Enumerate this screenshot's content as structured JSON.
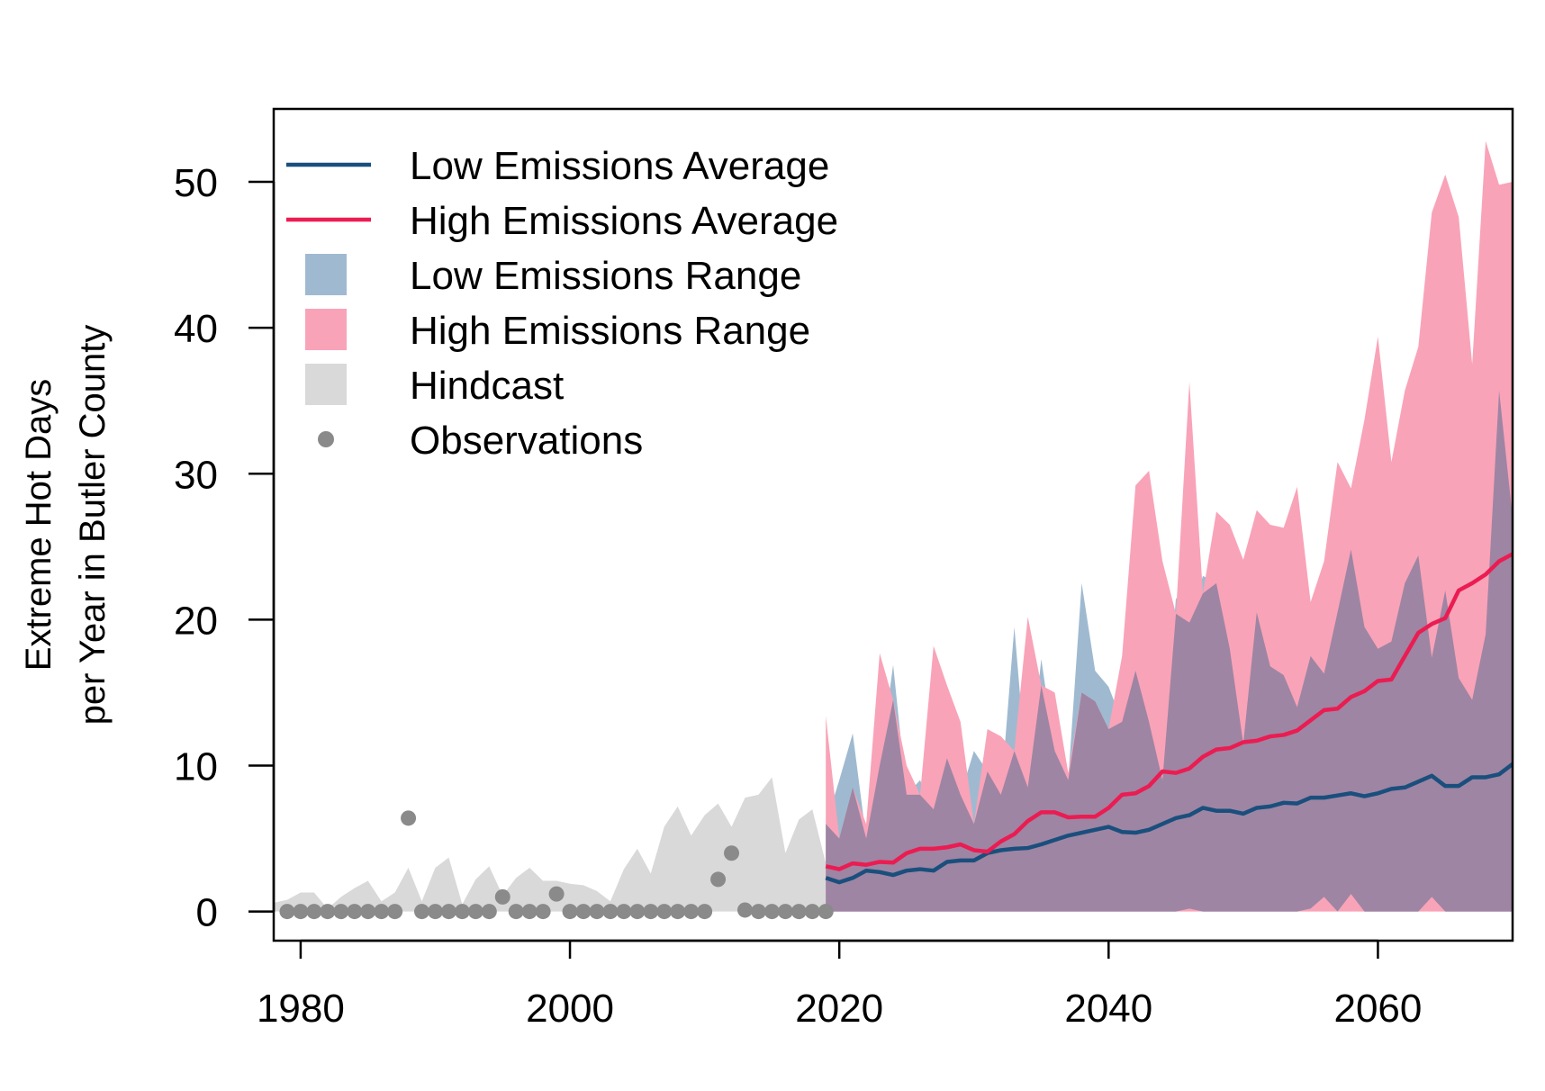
{
  "chart_data": {
    "type": "area",
    "ylabel_lines": [
      "Extreme Hot Days",
      "per Year in Butler County"
    ],
    "xlabel": "",
    "title": "",
    "xlim": [
      1978,
      2070
    ],
    "ylim": [
      -2,
      55
    ],
    "x_ticks": [
      1980,
      2000,
      2020,
      2040,
      2060
    ],
    "y_ticks": [
      0,
      10,
      20,
      30,
      40,
      50
    ],
    "x_tick_labels": [
      "1980",
      "2000",
      "2020",
      "2040",
      "2060"
    ],
    "y_tick_labels": [
      "0",
      "10",
      "20",
      "30",
      "40",
      "50"
    ],
    "grid": false,
    "legend_position": "top-left",
    "legend": [
      {
        "label": "Low Emissions Average",
        "kind": "line",
        "color": "#1a4f7d"
      },
      {
        "label": "High Emissions Average",
        "kind": "line",
        "color": "#eb1c52"
      },
      {
        "label": "Low Emissions Range",
        "kind": "box",
        "color": "#9fbad0"
      },
      {
        "label": "High Emissions Range",
        "kind": "box",
        "color": "#f9a3b8"
      },
      {
        "label": "Hindcast",
        "kind": "box",
        "color": "#d9d9d9"
      },
      {
        "label": "Observations",
        "kind": "point",
        "color": "#8a8a8a"
      }
    ],
    "colors": {
      "low_avg": "#1a4f7d",
      "high_avg": "#eb1c52",
      "low_range": "#9fbad0",
      "high_range": "#f9a3b8",
      "overlap": "#9e85a3",
      "hindcast": "#d9d9d9",
      "observations": "#8a8a8a"
    },
    "hindcast": {
      "x": [
        1978,
        1979,
        1980,
        1981,
        1982,
        1983,
        1984,
        1985,
        1986,
        1987,
        1988,
        1989,
        1990,
        1991,
        1992,
        1993,
        1994,
        1995,
        1996,
        1997,
        1998,
        1999,
        2000,
        2001,
        2002,
        2003,
        2004,
        2005,
        2006,
        2007,
        2008,
        2009,
        2010,
        2011,
        2012,
        2013,
        2014,
        2015,
        2016,
        2017,
        2018,
        2019
      ],
      "upper": [
        0.6,
        0.8,
        1.3,
        1.3,
        0.2,
        1.0,
        1.6,
        2.1,
        0.7,
        1.3,
        3.0,
        0.7,
        3.0,
        3.7,
        0.5,
        2.2,
        3.1,
        1.1,
        2.3,
        3.0,
        2.1,
        2.1,
        1.9,
        1.8,
        1.4,
        0.7,
        2.9,
        4.3,
        2.6,
        5.8,
        7.2,
        5.2,
        6.6,
        7.4,
        5.8,
        7.8,
        8.0,
        9.2,
        4.0,
        6.3,
        7.0,
        3.3
      ]
    },
    "observations": {
      "x": [
        1979,
        1980,
        1981,
        1982,
        1983,
        1984,
        1985,
        1986,
        1987,
        1988,
        1989,
        1990,
        1991,
        1992,
        1993,
        1994,
        1995,
        1996,
        1997,
        1998,
        1999,
        2000,
        2001,
        2002,
        2003,
        2004,
        2005,
        2006,
        2007,
        2008,
        2009,
        2010,
        2011,
        2012,
        2013,
        2014,
        2015,
        2016,
        2017,
        2018,
        2019
      ],
      "y": [
        0,
        0,
        0,
        0,
        0,
        0,
        0,
        0,
        0,
        6.4,
        0,
        0,
        0,
        0,
        0,
        0,
        1,
        0,
        0,
        0,
        1.2,
        0,
        0,
        0,
        0,
        0,
        0,
        0,
        0,
        0,
        0,
        0,
        2.2,
        4,
        0.1,
        0,
        0,
        0,
        0,
        0,
        0
      ]
    },
    "projection_years": [
      2019,
      2020,
      2021,
      2022,
      2023,
      2024,
      2025,
      2026,
      2027,
      2028,
      2029,
      2030,
      2031,
      2032,
      2033,
      2034,
      2035,
      2036,
      2037,
      2038,
      2039,
      2040,
      2041,
      2042,
      2043,
      2044,
      2045,
      2046,
      2047,
      2048,
      2049,
      2050,
      2051,
      2052,
      2053,
      2054,
      2055,
      2056,
      2057,
      2058,
      2059,
      2060,
      2061,
      2062,
      2063,
      2064,
      2065,
      2066,
      2067,
      2068,
      2069,
      2070
    ],
    "series": [
      {
        "name": "Low Emissions Range",
        "upper": [
          6,
          9,
          12.2,
          5,
          10,
          16.9,
          8,
          9,
          7,
          10.5,
          8,
          11,
          9.6,
          8,
          19.5,
          8.5,
          17.3,
          11,
          9,
          22.5,
          16.5,
          15.4,
          13,
          16.5,
          13,
          9,
          21.5,
          19.8,
          23,
          22.5,
          18,
          11.5,
          20.5,
          16.8,
          16.2,
          14,
          17.5,
          16.3,
          20.5,
          24.8,
          19.5,
          18,
          18.5,
          22.5,
          24.4,
          17.4,
          22,
          16,
          14.5,
          19,
          35.7,
          27
        ],
        "lower": [
          0,
          0,
          0,
          0,
          0,
          0,
          0,
          0,
          0,
          0,
          0,
          0,
          0,
          0,
          0,
          0,
          0,
          0,
          0,
          0,
          0,
          0,
          0,
          0,
          0,
          0,
          0,
          0.2,
          0,
          0,
          0,
          0,
          0,
          0,
          0,
          0,
          0.2,
          1.0,
          0,
          1.2,
          0,
          0,
          0,
          0,
          0,
          1.0,
          0,
          0,
          0,
          0,
          0,
          0
        ]
      },
      {
        "name": "High Emissions Range",
        "upper": [
          13.4,
          5,
          8.5,
          6,
          17.7,
          14.5,
          10,
          8,
          18.2,
          15.5,
          13,
          6,
          12.5,
          12,
          11,
          20.2,
          15.5,
          15,
          9.5,
          15,
          14.4,
          12.5,
          17.5,
          29.2,
          30.2,
          24,
          20.4,
          36.3,
          21.8,
          27.4,
          26.5,
          24.1,
          27.5,
          26.5,
          26.3,
          29.1,
          21.2,
          24,
          30.8,
          29,
          33.7,
          39.4,
          30.8,
          35.7,
          38.7,
          47.9,
          50.5,
          47.6,
          37.5,
          52.8,
          49.8,
          50
        ]
      },
      {
        "name": "Low Emissions Average",
        "values": [
          2.3,
          2,
          2.3,
          2.8,
          2.7,
          2.5,
          2.8,
          2.9,
          2.8,
          3.4,
          3.5,
          3.5,
          4,
          4.2,
          4.3,
          4.35,
          4.6,
          4.9,
          5.2,
          5.4,
          5.6,
          5.8,
          5.45,
          5.4,
          5.6,
          6,
          6.4,
          6.6,
          7.1,
          6.9,
          6.9,
          6.7,
          7.1,
          7.2,
          7.45,
          7.4,
          7.8,
          7.8,
          7.95,
          8.1,
          7.9,
          8.1,
          8.4,
          8.5,
          8.9,
          9.3,
          8.6,
          8.6,
          9.2,
          9.2,
          9.4,
          10.1
        ]
      },
      {
        "name": "High Emissions Average",
        "values": [
          3.1,
          2.9,
          3.3,
          3.2,
          3.4,
          3.35,
          4,
          4.3,
          4.3,
          4.4,
          4.6,
          4.2,
          4.1,
          4.8,
          5.3,
          6.2,
          6.8,
          6.8,
          6.45,
          6.5,
          6.5,
          7.1,
          8,
          8.1,
          8.6,
          9.6,
          9.5,
          9.8,
          10.6,
          11.1,
          11.2,
          11.6,
          11.7,
          12,
          12.1,
          12.4,
          13.1,
          13.8,
          13.9,
          14.7,
          15.1,
          15.8,
          15.9,
          17.5,
          19.1,
          19.7,
          20.1,
          22,
          22.5,
          23.1,
          24,
          24.5
        ]
      }
    ]
  }
}
